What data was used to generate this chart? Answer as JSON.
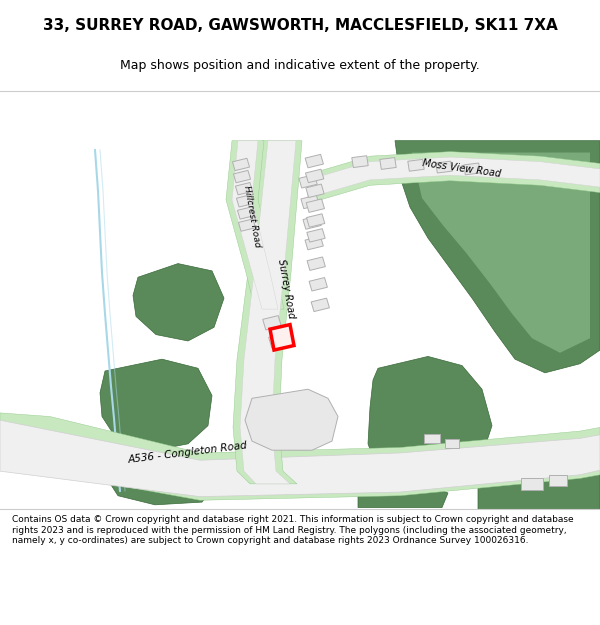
{
  "title": "33, SURREY ROAD, GAWSWORTH, MACCLESFIELD, SK11 7XA",
  "subtitle": "Map shows position and indicative extent of the property.",
  "footer": "Contains OS data © Crown copyright and database right 2021. This information is subject to Crown copyright and database rights 2023 and is reproduced with the permission of HM Land Registry. The polygons (including the associated geometry, namely x, y co-ordinates) are subject to Crown copyright and database rights 2023 Ordnance Survey 100026316.",
  "road_label_a536": "A536 - Congleton Road",
  "road_label_surrey": "Surrey Road",
  "road_label_hillcrest": "Hillcrest Road",
  "road_label_moss": "Moss View Road",
  "green_dark": "#5a8a5a",
  "green_light": "#c8e8c0",
  "road_surface": "#f0f0f0",
  "road_border": "#d0d0d0",
  "building_fill": "#e8e8e8",
  "building_edge": "#b0b0b0",
  "highlight_color": "#ff0000",
  "water_color": "#a8d8e8"
}
